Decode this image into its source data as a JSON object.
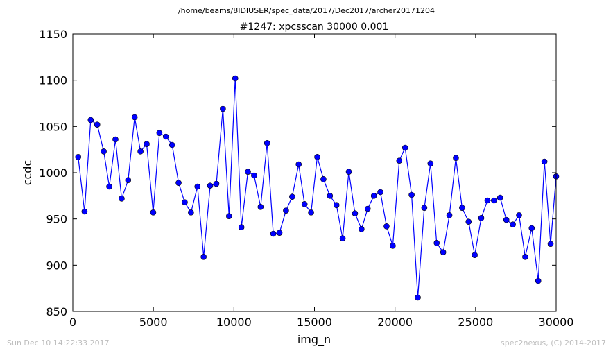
{
  "chart_data": {
    "type": "line",
    "suptitle": "/home/beams/8IDIUSER/spec_data/2017/Dec2017/archer20171204",
    "title": "#1247: xpcsscan 30000 0.001",
    "xlabel": "img_n",
    "ylabel": "ccdc",
    "xlim": [
      0,
      30000
    ],
    "ylim": [
      850,
      1150
    ],
    "xticks": [
      0,
      5000,
      10000,
      15000,
      20000,
      25000,
      30000
    ],
    "yticks": [
      850,
      900,
      950,
      1000,
      1050,
      1100,
      1150
    ],
    "grid": false,
    "line_color": "#0000ff",
    "marker": "circle",
    "series": [
      {
        "x": [
          333,
          727,
          1111,
          1515,
          1919,
          2262,
          2646,
          3030,
          3434,
          3838,
          4202,
          4586,
          4990,
          5374,
          5778,
          6162,
          6566,
          6949,
          7333,
          7737,
          8121,
          8525,
          8909,
          9313,
          9697,
          10081,
          10465,
          10869,
          11253,
          11657,
          12061,
          12444,
          12828,
          13232,
          13616,
          14020,
          14384,
          14788,
          15172,
          15556,
          15960,
          16364,
          16747,
          17131,
          17515,
          17919,
          18303,
          18687,
          19091,
          19475,
          19859,
          20263,
          20627,
          21031,
          21414,
          21818,
          22202,
          22586,
          22990,
          23374,
          23778,
          24162,
          24566,
          24949,
          25353,
          25737,
          26141,
          26525,
          26909,
          27313,
          27697,
          28081,
          28485,
          28889,
          29273,
          29657,
          30000
        ],
        "y": [
          1017,
          958,
          1057,
          1052,
          1023,
          985,
          1036,
          972,
          992,
          1060,
          1023,
          1031,
          957,
          1043,
          1039,
          1030,
          989,
          968,
          957,
          985,
          909,
          986,
          988,
          1069,
          953,
          1102,
          941,
          1001,
          997,
          963,
          1032,
          934,
          935,
          959,
          974,
          1009,
          966,
          957,
          1017,
          993,
          975,
          965,
          929,
          1001,
          956,
          939,
          961,
          975,
          979,
          942,
          921,
          1013,
          1027,
          976,
          865,
          962,
          1010,
          924,
          914,
          954,
          1016,
          962,
          947,
          911,
          951,
          970,
          970,
          973,
          949,
          944,
          954,
          909,
          940,
          883,
          1012,
          923,
          996
        ]
      }
    ]
  },
  "footer": {
    "timestamp": "Sun Dec 10 14:22:33 2017",
    "credit": "spec2nexus, (C) 2014-2017"
  }
}
